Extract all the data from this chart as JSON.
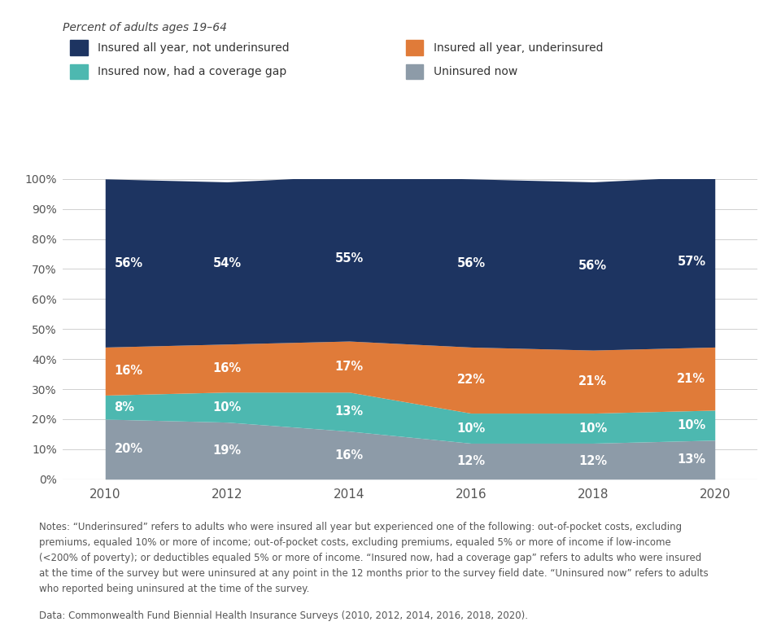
{
  "years": [
    2010,
    2012,
    2014,
    2016,
    2018,
    2020
  ],
  "uninsured_now": [
    20,
    19,
    16,
    12,
    12,
    13
  ],
  "coverage_gap": [
    8,
    10,
    13,
    10,
    10,
    10
  ],
  "insured_underinsured": [
    16,
    16,
    17,
    22,
    21,
    21
  ],
  "insured_not_under": [
    56,
    54,
    55,
    56,
    56,
    57
  ],
  "colors": {
    "insured_not_under": "#1d3461",
    "insured_underinsured": "#e07b39",
    "coverage_gap": "#4db8b0",
    "uninsured_now": "#8d9ba8"
  },
  "subtitle": "Percent of adults ages 19–64",
  "legend_items": [
    {
      "label": "Insured all year, not underinsured",
      "color": "#1d3461",
      "col": 0,
      "row": 0
    },
    {
      "label": "Insured all year, underinsured",
      "color": "#e07b39",
      "col": 1,
      "row": 0
    },
    {
      "label": "Insured now, had a coverage gap",
      "color": "#4db8b0",
      "col": 0,
      "row": 1
    },
    {
      "label": "Uninsured now",
      "color": "#8d9ba8",
      "col": 1,
      "row": 1
    }
  ],
  "notes_text": "Notes: “Underinsured” refers to adults who were insured all year but experienced one of the following: out-of-pocket costs, excluding\npremiums, equaled 10% or more of income; out-of-pocket costs, excluding premiums, equaled 5% or more of income if low-income\n(<200% of poverty); or deductibles equaled 5% or more of income. “Insured now, had a coverage gap” refers to adults who were insured\nat the time of the survey but were uninsured at any point in the 12 months prior to the survey field date. “Uninsured now” refers to adults\nwho reported being uninsured at the time of the survey.",
  "source_text": "Data: Commonwealth Fund Biennial Health Insurance Surveys (2010, 2012, 2014, 2016, 2018, 2020).",
  "background_color": "#ffffff",
  "label_color": "#ffffff",
  "text_color": "#555555"
}
